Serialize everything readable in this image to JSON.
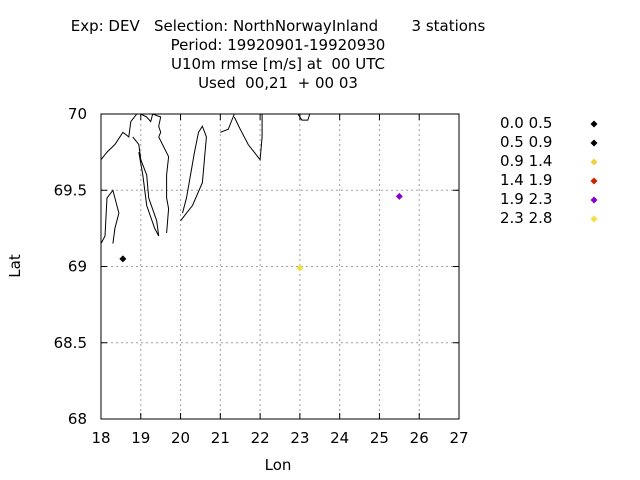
{
  "header": {
    "line1": "Exp: DEV   Selection: NorthNorwayInland       3 stations",
    "line2": "Period: 19920901-19920930",
    "line3": "U10m rmse [m/s] at  00 UTC",
    "line4": "Used  00,21  + 00 03"
  },
  "chart_data": {
    "type": "scatter",
    "title": "U10m rmse [m/s] at  00 UTC",
    "xlabel": "Lon",
    "ylabel": "Lat",
    "xlim": [
      18,
      27
    ],
    "ylim": [
      68,
      70
    ],
    "xticks": [
      "18",
      "19",
      "20",
      "21",
      "22",
      "23",
      "24",
      "25",
      "26",
      "27"
    ],
    "yticks": [
      "68",
      "68.5",
      "69",
      "69.5",
      "70"
    ],
    "grid": true,
    "legend_position": "right",
    "legend": [
      {
        "label": "0.0 0.5",
        "color": "#000000"
      },
      {
        "label": "0.5 0.9",
        "color": "#000000"
      },
      {
        "label": "0.9 1.4",
        "color": "#f0d040"
      },
      {
        "label": "1.4 1.9",
        "color": "#cc2200"
      },
      {
        "label": "1.9 2.3",
        "color": "#8800cc"
      },
      {
        "label": "2.3 2.8",
        "color": "#f0e040"
      }
    ],
    "points": [
      {
        "lon": 18.55,
        "lat": 69.05,
        "color": "#000000"
      },
      {
        "lon": 25.5,
        "lat": 69.46,
        "color": "#8800cc"
      },
      {
        "lon": 23.0,
        "lat": 68.99,
        "color": "#f0e040"
      }
    ]
  },
  "coastline": [
    [
      [
        18.0,
        69.15
      ],
      [
        18.1,
        69.2
      ],
      [
        18.15,
        69.45
      ],
      [
        18.3,
        69.5
      ],
      [
        18.45,
        69.35
      ],
      [
        18.35,
        69.25
      ],
      [
        18.3,
        69.15
      ]
    ],
    [
      [
        18.0,
        69.7
      ],
      [
        18.15,
        69.75
      ],
      [
        18.35,
        69.8
      ],
      [
        18.55,
        69.88
      ],
      [
        18.7,
        69.85
      ],
      [
        18.75,
        69.95
      ],
      [
        18.9,
        70.0
      ]
    ],
    [
      [
        18.8,
        69.85
      ],
      [
        18.95,
        69.8
      ],
      [
        19.0,
        69.7
      ],
      [
        19.15,
        69.6
      ],
      [
        19.2,
        69.45
      ],
      [
        19.4,
        69.3
      ],
      [
        19.45,
        69.2
      ],
      [
        19.35,
        69.25
      ],
      [
        19.15,
        69.4
      ],
      [
        19.05,
        69.6
      ],
      [
        18.95,
        69.75
      ]
    ],
    [
      [
        19.0,
        70.0
      ],
      [
        19.15,
        69.98
      ],
      [
        19.25,
        69.95
      ],
      [
        19.3,
        70.0
      ],
      [
        19.5,
        69.98
      ],
      [
        19.45,
        69.92
      ],
      [
        19.5,
        69.88
      ],
      [
        19.45,
        69.85
      ]
    ],
    [
      [
        19.45,
        69.85
      ],
      [
        19.7,
        69.72
      ],
      [
        19.65,
        69.6
      ],
      [
        19.65,
        69.45
      ],
      [
        19.7,
        69.38
      ],
      [
        19.65,
        69.22
      ]
    ],
    [
      [
        20.0,
        69.3
      ],
      [
        20.15,
        69.35
      ],
      [
        20.3,
        69.4
      ],
      [
        20.55,
        69.55
      ],
      [
        20.6,
        69.7
      ],
      [
        20.65,
        69.85
      ],
      [
        20.55,
        69.92
      ],
      [
        20.45,
        69.88
      ],
      [
        20.35,
        69.75
      ],
      [
        20.25,
        69.6
      ],
      [
        20.15,
        69.45
      ],
      [
        20.05,
        69.35
      ]
    ],
    [
      [
        21.0,
        69.88
      ],
      [
        21.2,
        69.9
      ],
      [
        21.35,
        70.0
      ]
    ],
    [
      [
        21.35,
        69.98
      ],
      [
        21.5,
        69.9
      ],
      [
        21.7,
        69.8
      ],
      [
        21.85,
        69.75
      ],
      [
        22.0,
        69.7
      ],
      [
        22.05,
        69.85
      ],
      [
        22.05,
        70.0
      ]
    ],
    [
      [
        22.95,
        70.0
      ],
      [
        23.05,
        69.96
      ],
      [
        23.2,
        69.96
      ],
      [
        23.25,
        70.0
      ]
    ]
  ]
}
